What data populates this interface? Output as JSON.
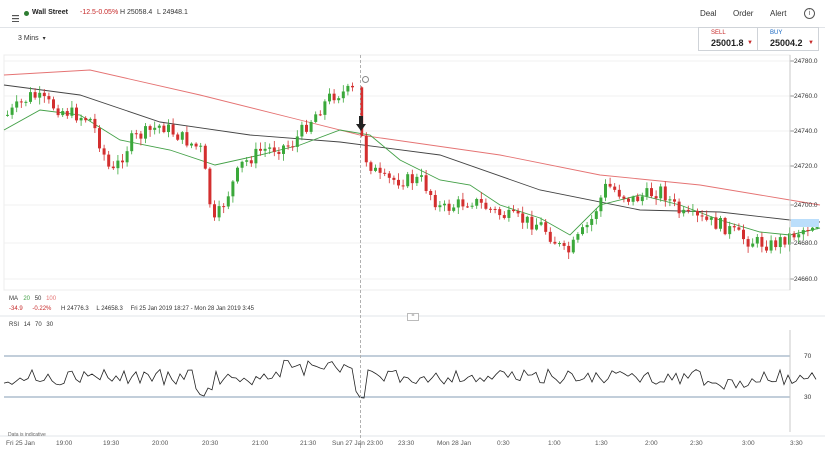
{
  "header": {
    "instrument": "Wall Street",
    "change": "-12.5",
    "change_pct": "-0.05%",
    "high": "H 25058.4",
    "low": "L 24948.1",
    "nav": [
      "Deal",
      "Order",
      "Alert"
    ],
    "timeframe": "3 Mins",
    "colors": {
      "down": "#d32f2f",
      "up": "#3aa83a",
      "accent": "#c62828"
    }
  },
  "quote": {
    "sell_label": "SELL",
    "sell_price": "25001.8",
    "buy_label": "BUY",
    "buy_price": "25004.2"
  },
  "ma_legend": {
    "label": "MA",
    "p1": "20",
    "p2": "50",
    "p3": "100",
    "change": "-34.9",
    "change_pct": "-0.22%",
    "high": "H 24776.3",
    "low": "L 24658.3",
    "range": "Fri 25 Jan 2019 18:27 - Mon 28 Jan 2019 3:45"
  },
  "rsi_legend": {
    "label": "RSI",
    "p1": "14",
    "p2": "70",
    "p3": "30"
  },
  "footer_note": "Data is indicative",
  "chart_data": {
    "type": "candlestick",
    "y_ticks": [
      "24780.0",
      "24760.0",
      "24740.0",
      "24720.0",
      "24700.0",
      "24680.0",
      "24660.0"
    ],
    "x_ticks": [
      "Fri 25 Jan",
      "19:00",
      "19:30",
      "20:00",
      "20:30",
      "21:00",
      "21:30",
      "Sun 27 Jan 23:00",
      "23:30",
      "Mon 28 Jan",
      "0:30",
      "1:00",
      "1:30",
      "2:00",
      "2:30",
      "3:00",
      "3:30"
    ],
    "rsi_ticks": [
      "70",
      "30"
    ],
    "ma_lines": [
      {
        "period": 20,
        "color": "#43a047"
      },
      {
        "period": 50,
        "color": "#444444"
      },
      {
        "period": 100,
        "color": "#e57373"
      }
    ]
  }
}
